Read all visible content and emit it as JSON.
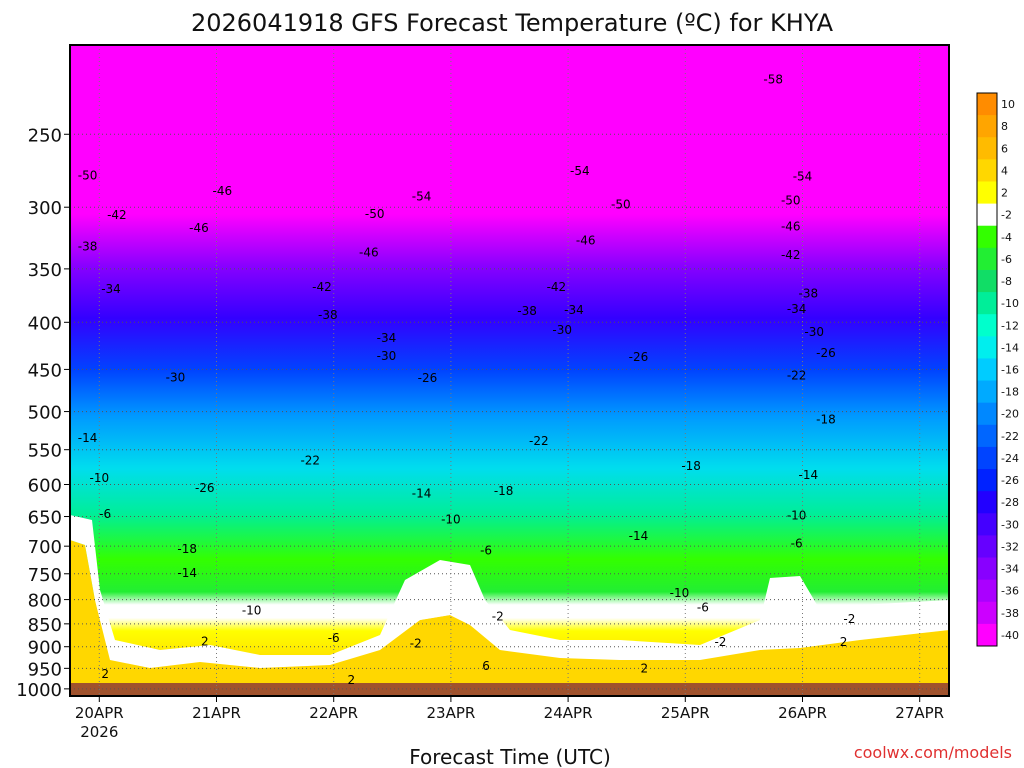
{
  "chart_data": {
    "type": "heatmap",
    "title": "2026041918 GFS Forecast Temperature (ºC) for KHYA",
    "xlabel": "Forecast Time (UTC)",
    "ylabel": "",
    "credit": "coolwx.com/models",
    "x_tick_labels": [
      {
        "label": "20APR",
        "sub": "2026",
        "day": 0.25
      },
      {
        "label": "21APR",
        "sub": "",
        "day": 1.25
      },
      {
        "label": "22APR",
        "sub": "",
        "day": 2.25
      },
      {
        "label": "23APR",
        "sub": "",
        "day": 3.25
      },
      {
        "label": "24APR",
        "sub": "",
        "day": 4.25
      },
      {
        "label": "25APR",
        "sub": "",
        "day": 5.25
      },
      {
        "label": "26APR",
        "sub": "",
        "day": 6.25
      },
      {
        "label": "27APR",
        "sub": "",
        "day": 7.25
      }
    ],
    "x_range_days": [
      0,
      7.5
    ],
    "y_range_hpa": [
      1018,
      200
    ],
    "y_axis_pressure_levels_hpa": [
      250,
      300,
      350,
      400,
      450,
      500,
      550,
      600,
      650,
      700,
      750,
      800,
      850,
      900,
      950,
      1000
    ],
    "colorbar": {
      "labels": [
        "10",
        "8",
        "6",
        "4",
        "2",
        "-2",
        "-4",
        "-6",
        "-8",
        "-10",
        "-12",
        "-14",
        "-16",
        "-18",
        "-20",
        "-22",
        "-24",
        "-26",
        "-28",
        "-30",
        "-32",
        "-34",
        "-36",
        "-38",
        "-40"
      ],
      "colors": [
        "#ff8c00",
        "#ffa500",
        "#ffbb00",
        "#ffd700",
        "#ffff00",
        "#ffffff",
        "#33ff00",
        "#22ee33",
        "#11dd66",
        "#00ee99",
        "#00ffcc",
        "#00eeee",
        "#00ccff",
        "#00aaff",
        "#0088ff",
        "#0066ff",
        "#0044ff",
        "#0022ff",
        "#2200ff",
        "#4400ff",
        "#6600ff",
        "#8800ff",
        "#aa00ff",
        "#cc00ff",
        "#ff00ff"
      ]
    },
    "isotherm_labels": [
      {
        "v": "-58",
        "day": 6.0,
        "p": 218
      },
      {
        "v": "-54",
        "day": 4.35,
        "p": 274
      },
      {
        "v": "-54",
        "day": 6.25,
        "p": 278
      },
      {
        "v": "-54",
        "day": 3.0,
        "p": 292
      },
      {
        "v": "-50",
        "day": 0.15,
        "p": 277
      },
      {
        "v": "-50",
        "day": 2.6,
        "p": 305
      },
      {
        "v": "-50",
        "day": 4.7,
        "p": 298
      },
      {
        "v": "-50",
        "day": 6.15,
        "p": 295
      },
      {
        "v": "-46",
        "day": 1.3,
        "p": 288
      },
      {
        "v": "-46",
        "day": 1.1,
        "p": 316
      },
      {
        "v": "-46",
        "day": 2.55,
        "p": 336
      },
      {
        "v": "-46",
        "day": 4.4,
        "p": 326
      },
      {
        "v": "-46",
        "day": 6.15,
        "p": 315
      },
      {
        "v": "-42",
        "day": 0.4,
        "p": 306
      },
      {
        "v": "-42",
        "day": 2.15,
        "p": 366
      },
      {
        "v": "-42",
        "day": 4.15,
        "p": 366
      },
      {
        "v": "-42",
        "day": 6.15,
        "p": 338
      },
      {
        "v": "-38",
        "day": 0.15,
        "p": 331
      },
      {
        "v": "-38",
        "day": 2.2,
        "p": 393
      },
      {
        "v": "-38",
        "day": 3.9,
        "p": 389
      },
      {
        "v": "-38",
        "day": 6.3,
        "p": 372
      },
      {
        "v": "-34",
        "day": 0.35,
        "p": 368
      },
      {
        "v": "-34",
        "day": 2.7,
        "p": 416
      },
      {
        "v": "-34",
        "day": 4.3,
        "p": 388
      },
      {
        "v": "-34",
        "day": 6.2,
        "p": 387
      },
      {
        "v": "-30",
        "day": 0.9,
        "p": 459
      },
      {
        "v": "-30",
        "day": 2.7,
        "p": 435
      },
      {
        "v": "-30",
        "day": 4.2,
        "p": 408
      },
      {
        "v": "-30",
        "day": 6.35,
        "p": 410
      },
      {
        "v": "-26",
        "day": 1.15,
        "p": 605
      },
      {
        "v": "-26",
        "day": 3.05,
        "p": 460
      },
      {
        "v": "-26",
        "day": 4.85,
        "p": 436
      },
      {
        "v": "-26",
        "day": 6.45,
        "p": 432
      },
      {
        "v": "-22",
        "day": 2.05,
        "p": 565
      },
      {
        "v": "-22",
        "day": 4.0,
        "p": 538
      },
      {
        "v": "-22",
        "day": 6.2,
        "p": 457
      },
      {
        "v": "-18",
        "day": 1.0,
        "p": 705
      },
      {
        "v": "-18",
        "day": 3.7,
        "p": 610
      },
      {
        "v": "-18",
        "day": 5.3,
        "p": 573
      },
      {
        "v": "-18",
        "day": 6.45,
        "p": 510
      },
      {
        "v": "-14",
        "day": 0.15,
        "p": 534
      },
      {
        "v": "-14",
        "day": 1.0,
        "p": 749
      },
      {
        "v": "-14",
        "day": 3.0,
        "p": 614
      },
      {
        "v": "-14",
        "day": 4.85,
        "p": 682
      },
      {
        "v": "-14",
        "day": 6.3,
        "p": 586
      },
      {
        "v": "-10",
        "day": 0.25,
        "p": 590
      },
      {
        "v": "-10",
        "day": 1.55,
        "p": 822
      },
      {
        "v": "-10",
        "day": 3.25,
        "p": 655
      },
      {
        "v": "-10",
        "day": 5.2,
        "p": 787
      },
      {
        "v": "-10",
        "day": 6.2,
        "p": 648
      },
      {
        "v": "-6",
        "day": 0.3,
        "p": 646
      },
      {
        "v": "-6",
        "day": 2.25,
        "p": 881
      },
      {
        "v": "-6",
        "day": 3.55,
        "p": 708
      },
      {
        "v": "-6",
        "day": 5.4,
        "p": 816
      },
      {
        "v": "-6",
        "day": 6.2,
        "p": 695
      },
      {
        "v": "-2",
        "day": 2.95,
        "p": 893
      },
      {
        "v": "-2",
        "day": 3.65,
        "p": 835
      },
      {
        "v": "-2",
        "day": 5.55,
        "p": 890
      },
      {
        "v": "-2",
        "day": 6.65,
        "p": 840
      },
      {
        "v": "2",
        "day": 0.3,
        "p": 963
      },
      {
        "v": "2",
        "day": 1.15,
        "p": 888
      },
      {
        "v": "2",
        "day": 2.4,
        "p": 978
      },
      {
        "v": "2",
        "day": 4.9,
        "p": 950
      },
      {
        "v": "2",
        "day": 6.6,
        "p": 889
      },
      {
        "v": "6",
        "day": 3.55,
        "p": 944
      }
    ]
  }
}
